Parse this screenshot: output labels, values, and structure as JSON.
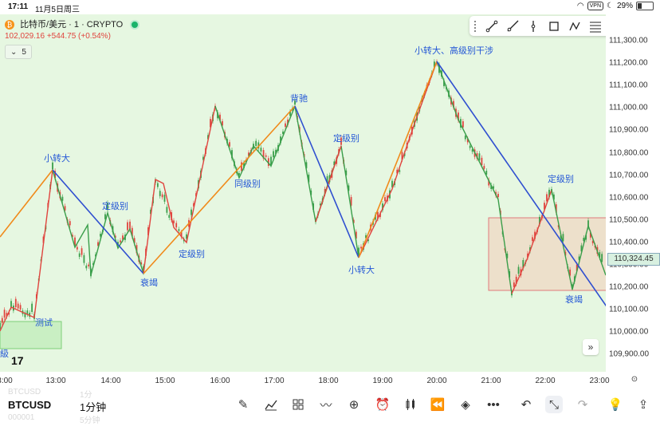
{
  "status_bar": {
    "time": "17:11",
    "date": "11月5日周三",
    "vpn": "VPN",
    "battery": "29%"
  },
  "symbol_header": {
    "logo": "₿",
    "title": "比特币/美元 · 1 · CRYPTO",
    "last_price": "102,029.16",
    "change": "+544.75 (+0.54%)",
    "indicator_count": "5"
  },
  "drawing_tools": [
    "trend-line-tool",
    "ray-line-tool",
    "vertical-line-tool",
    "rectangle-tool",
    "path-tool",
    "fib-tool",
    "text-tool"
  ],
  "price_axis": {
    "ticks": [
      "111,300.00",
      "111,200.00",
      "111,100.00",
      "111,000.00",
      "110,900.00",
      "110,800.00",
      "110,700.00",
      "110,600.00",
      "110,500.00",
      "110,400.00",
      "110,300.00",
      "110,200.00",
      "110,100.00",
      "110,000.00",
      "109,900.00"
    ],
    "current_price": "110,324.45"
  },
  "time_axis": [
    "3:00",
    "13:00",
    "14:00",
    "15:00",
    "16:00",
    "17:00",
    "18:00",
    "19:00",
    "20:00",
    "21:00",
    "22:00",
    "23:00"
  ],
  "annotations": [
    "小转大",
    "定级别",
    "衰竭",
    "定级别",
    "同级别",
    "背驰",
    "定级别",
    "小转大",
    "小转大、高级别干涉",
    "定级别",
    "衰竭",
    "测试",
    "級"
  ],
  "bottom_bar": {
    "symbol": "BTCUSD",
    "interval": "1分钟",
    "ghost_symbol": "BTCUSD",
    "ghost_interval": "1分",
    "ghost_code": "000001",
    "ghost_interval2": "5分钟"
  },
  "colors": {
    "chart_bg": "#e6f7e1",
    "up": "#e0443e",
    "down": "#3a9e4a",
    "trend_orange": "#f08a1a",
    "trend_blue": "#2f4fd0",
    "annotation": "#2457d6",
    "box": "#f2dcc8"
  }
}
